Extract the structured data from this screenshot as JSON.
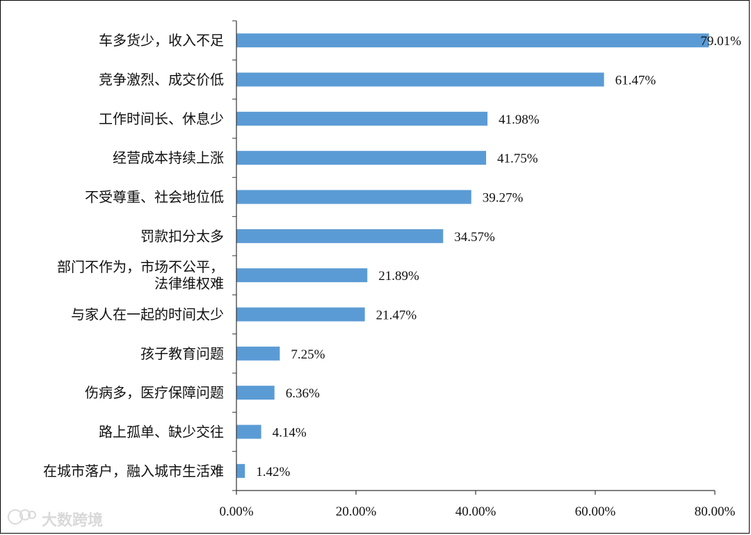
{
  "chart_data": {
    "type": "bar",
    "orientation": "horizontal",
    "categories": [
      "车多货少，收入不足",
      "竞争激烈、成交价低",
      "工作时间长、休息少",
      "经营成本持续上涨",
      "不受尊重、社会地位低",
      "罚款扣分太多",
      "部门不作为，市场不公平，法律维权难",
      "与家人在一起的时间太少",
      "孩子教育问题",
      "伤病多，医疗保障问题",
      "路上孤单、缺少交往",
      "在城市落户，融入城市生活难"
    ],
    "category_lines": [
      [
        "车多货少，收入不足"
      ],
      [
        "竞争激烈、成交价低"
      ],
      [
        "工作时间长、休息少"
      ],
      [
        "经营成本持续上涨"
      ],
      [
        "不受尊重、社会地位低"
      ],
      [
        "罚款扣分太多"
      ],
      [
        "部门不作为，市场不公平，",
        "法律维权难"
      ],
      [
        "与家人在一起的时间太少"
      ],
      [
        "孩子教育问题"
      ],
      [
        "伤病多，医疗保障问题"
      ],
      [
        "路上孤单、缺少交往"
      ],
      [
        "在城市落户，融入城市生活难"
      ]
    ],
    "values": [
      79.01,
      61.47,
      41.98,
      41.75,
      39.27,
      34.57,
      21.89,
      21.47,
      7.25,
      6.36,
      4.14,
      1.42
    ],
    "value_labels": [
      "79.01%",
      "61.47%",
      "41.98%",
      "41.75%",
      "39.27%",
      "34.57%",
      "21.89%",
      "21.47%",
      "7.25%",
      "6.36%",
      "4.14%",
      "1.42%"
    ],
    "xlim": [
      0,
      80
    ],
    "x_ticks": [
      "0.00%",
      "20.00%",
      "40.00%",
      "60.00%",
      "80.00%"
    ],
    "bar_color": "#5b9bd5",
    "grid": false,
    "legend": "none"
  },
  "watermark": {
    "text": "大数跨境",
    "icon": "chat-bubbles-icon"
  }
}
